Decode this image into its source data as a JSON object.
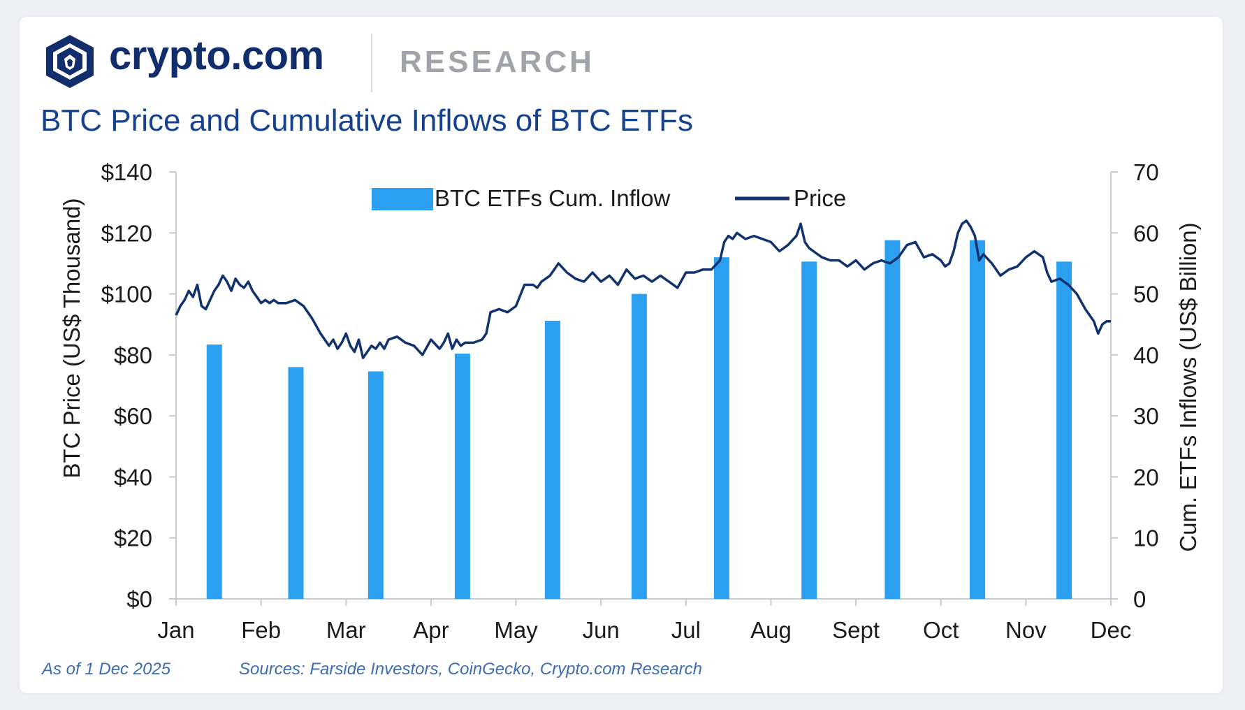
{
  "brand": {
    "name": "crypto.com",
    "section": "RESEARCH",
    "colors": {
      "brand": "#112d6b",
      "section": "#a0a4aa"
    }
  },
  "title": "BTC Price and Cumulative Inflows of BTC ETFs",
  "footer": {
    "as_of": "As of 1 Dec 2025",
    "sources": "Sources: Farside Investors, CoinGecko, Crypto.com Research"
  },
  "chart_data": {
    "type": "bar+line",
    "categories": [
      "Jan",
      "Feb",
      "Mar",
      "Apr",
      "May",
      "Jun",
      "Jul",
      "Aug",
      "Sept",
      "Oct",
      "Nov",
      "Dec"
    ],
    "left_axis": {
      "label": "BTC Price (US$ Thousand)",
      "ticks": [
        "$0",
        "$20",
        "$40",
        "$60",
        "$80",
        "$100",
        "$120",
        "$140"
      ],
      "range": [
        0,
        140
      ]
    },
    "right_axis": {
      "label": "Cum. ETFs Inflows (US$ Billion)",
      "ticks": [
        "0",
        "10",
        "20",
        "30",
        "40",
        "50",
        "60",
        "70"
      ],
      "range": [
        0,
        70
      ]
    },
    "x_range": [
      0,
      11
    ],
    "legend": {
      "bars": "BTC ETFs Cum. Inflow",
      "line": "Price"
    },
    "colors": {
      "bars": "#2ba0f0",
      "line": "#12326e",
      "axis": "#c8ccd2"
    },
    "bars": {
      "name": "BTC ETFs Cum. Inflow",
      "axis": "right",
      "x": [
        0.45,
        1.41,
        2.35,
        3.37,
        4.43,
        5.45,
        6.42,
        7.45,
        8.43,
        9.43,
        10.45
      ],
      "values": [
        41.7,
        38.0,
        37.3,
        40.2,
        45.6,
        50.0,
        56.0,
        55.3,
        58.8,
        58.8,
        55.3
      ]
    },
    "price": {
      "name": "Price",
      "axis": "left",
      "x": [
        0,
        0.05,
        0.1,
        0.15,
        0.2,
        0.25,
        0.3,
        0.35,
        0.4,
        0.45,
        0.5,
        0.55,
        0.6,
        0.65,
        0.7,
        0.75,
        0.8,
        0.85,
        0.9,
        0.95,
        1.0,
        1.05,
        1.1,
        1.15,
        1.2,
        1.3,
        1.4,
        1.5,
        1.6,
        1.7,
        1.8,
        1.85,
        1.9,
        1.95,
        2.0,
        2.05,
        2.1,
        2.15,
        2.2,
        2.25,
        2.3,
        2.35,
        2.4,
        2.45,
        2.5,
        2.6,
        2.7,
        2.8,
        2.9,
        3.0,
        3.1,
        3.15,
        3.2,
        3.25,
        3.3,
        3.35,
        3.4,
        3.5,
        3.6,
        3.65,
        3.7,
        3.8,
        3.9,
        4.0,
        4.1,
        4.2,
        4.25,
        4.3,
        4.4,
        4.5,
        4.6,
        4.7,
        4.8,
        4.9,
        5.0,
        5.1,
        5.2,
        5.3,
        5.4,
        5.5,
        5.6,
        5.7,
        5.8,
        5.9,
        6.0,
        6.1,
        6.2,
        6.3,
        6.4,
        6.45,
        6.5,
        6.55,
        6.6,
        6.7,
        6.8,
        6.9,
        7.0,
        7.1,
        7.2,
        7.3,
        7.35,
        7.4,
        7.45,
        7.5,
        7.6,
        7.7,
        7.8,
        7.9,
        8.0,
        8.1,
        8.2,
        8.3,
        8.4,
        8.5,
        8.6,
        8.7,
        8.8,
        8.9,
        9.0,
        9.05,
        9.1,
        9.15,
        9.2,
        9.25,
        9.3,
        9.35,
        9.4,
        9.45,
        9.5,
        9.6,
        9.7,
        9.8,
        9.9,
        10.0,
        10.1,
        10.2,
        10.25,
        10.3,
        10.4,
        10.5,
        10.6,
        10.7,
        10.8,
        10.85,
        10.9,
        10.95,
        11.0
      ],
      "values": [
        93,
        96,
        98,
        101,
        99,
        103,
        96,
        95,
        98,
        101,
        103,
        106,
        104,
        101,
        105,
        103,
        102,
        104,
        101,
        99,
        97,
        98,
        97,
        98,
        97,
        97,
        98,
        96,
        92,
        87,
        83,
        85,
        82,
        84,
        87,
        83,
        81,
        85,
        79,
        81,
        83,
        82,
        84,
        82,
        85,
        86,
        84,
        83,
        80,
        85,
        82,
        84,
        87,
        82,
        85,
        83,
        84,
        84,
        85,
        87,
        94,
        95,
        94,
        96,
        103,
        103,
        102,
        104,
        106,
        110,
        107,
        105,
        104,
        107,
        104,
        106,
        103,
        108,
        105,
        106,
        104,
        106,
        104,
        102,
        107,
        107,
        108,
        108,
        111,
        117,
        119,
        118,
        120,
        118,
        119,
        118,
        117,
        114,
        116,
        119,
        123,
        117,
        115,
        114,
        112,
        111,
        111,
        109,
        111,
        108,
        110,
        111,
        110,
        112,
        116,
        117,
        112,
        113,
        111,
        109,
        110,
        114,
        120,
        123,
        124,
        122,
        119,
        111,
        113,
        110,
        106,
        108,
        109,
        112,
        114,
        112,
        107,
        104,
        105,
        103,
        100,
        95,
        91,
        87,
        90,
        91,
        91
      ]
    }
  }
}
